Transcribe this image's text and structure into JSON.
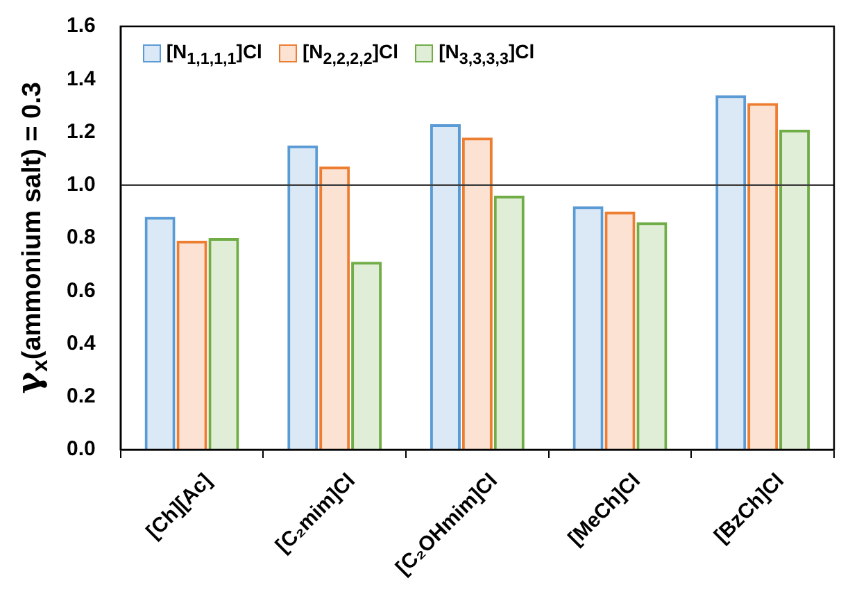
{
  "chart_data": {
    "type": "bar",
    "ylabel": "γ$_{x}$(ammonium salt) = 0.3",
    "categories": [
      "[Ch][Ac]",
      "[C₂mim]Cl",
      "[C₂OHmim]Cl",
      "[MeCh]Cl",
      "[BzCh]Cl"
    ],
    "series": [
      {
        "name": "[N$_{1,1,1,1}$]Cl",
        "color": "#5b9bd5",
        "values": [
          0.88,
          1.15,
          1.23,
          0.92,
          1.34
        ]
      },
      {
        "name": "[N$_{2,2,2,2}$]Cl",
        "color": "#ed7d31",
        "values": [
          0.79,
          1.07,
          1.18,
          0.9,
          1.31
        ]
      },
      {
        "name": "[N$_{3,3,3,3}$]Cl",
        "color": "#70ad47",
        "values": [
          0.8,
          0.71,
          0.96,
          0.86,
          1.21
        ]
      }
    ],
    "ylim": [
      0,
      1.6
    ],
    "yticks": [
      {
        "value": 0,
        "label": "0.0"
      },
      {
        "value": 0.2,
        "label": "0.2"
      },
      {
        "value": 0.4,
        "label": "0.4"
      },
      {
        "value": 0.6,
        "label": "0.6"
      },
      {
        "value": 0.8,
        "label": "0.8"
      },
      {
        "value": 1,
        "label": "1.0"
      },
      {
        "value": 1.2,
        "label": "1.2"
      },
      {
        "value": 1.4,
        "label": "1.4"
      },
      {
        "value": 1.6,
        "label": "1.6"
      }
    ],
    "ref_lines": [
      {
        "axis": "y",
        "value": 1,
        "color": "#404040"
      }
    ],
    "legend": "top left"
  }
}
